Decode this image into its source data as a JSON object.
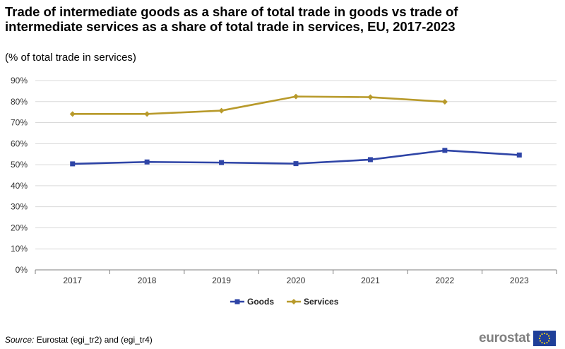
{
  "title": "Trade of intermediate goods as a share of total trade in goods vs trade of intermediate services as a share of total trade in services, EU, 2017-2023",
  "subtitle": "(% of total trade in services)",
  "source_label": "Source:",
  "source_text": "Eurostat (egi_tr2) and (egi_tr4)",
  "logo_text": "eurostat",
  "chart_data": {
    "type": "line",
    "title": "Trade of intermediate goods as a share of total trade in goods vs trade of intermediate services as a share of total trade in services, EU, 2017-2023",
    "subtitle": "(% of total trade in services)",
    "xlabel": "",
    "ylabel": "",
    "categories": [
      "2017",
      "2018",
      "2019",
      "2020",
      "2021",
      "2022",
      "2023"
    ],
    "ylim": [
      0,
      90
    ],
    "yticks": [
      0,
      10,
      20,
      30,
      40,
      50,
      60,
      70,
      80,
      90
    ],
    "ytick_labels": [
      "0%",
      "10%",
      "20%",
      "30%",
      "40%",
      "50%",
      "60%",
      "70%",
      "80%",
      "90%"
    ],
    "grid": true,
    "legend_position": "bottom-center",
    "series": [
      {
        "name": "Goods",
        "color": "#2e44a6",
        "marker": "square",
        "values": [
          50.4,
          51.3,
          51.0,
          50.5,
          52.4,
          56.8,
          54.6
        ]
      },
      {
        "name": "Services",
        "color": "#b89a2b",
        "marker": "diamond",
        "values": [
          74.1,
          74.1,
          75.7,
          82.4,
          82.1,
          79.9,
          null
        ]
      }
    ]
  }
}
